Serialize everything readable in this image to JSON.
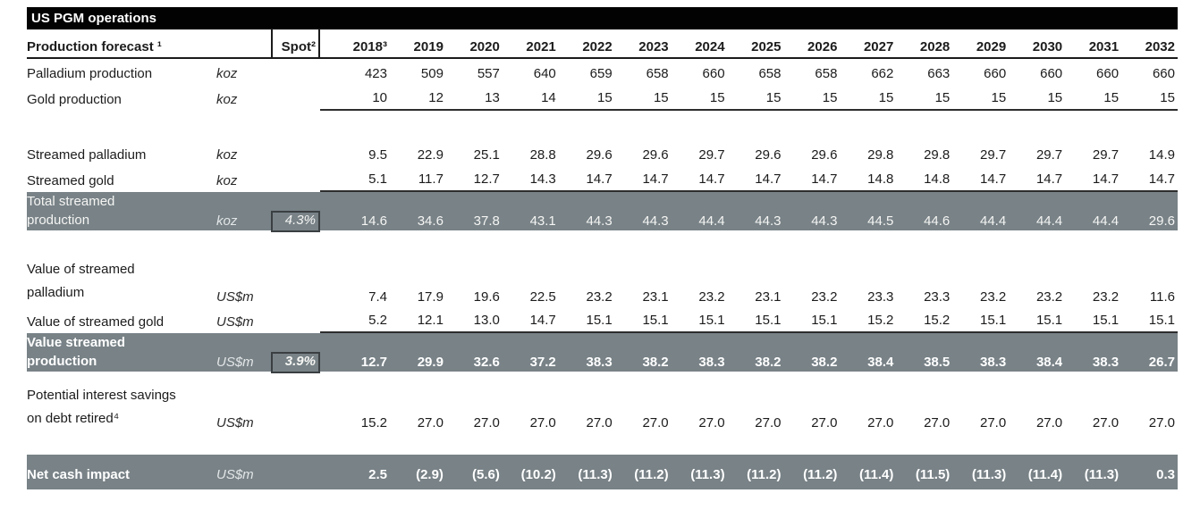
{
  "title": "US PGM operations",
  "colors": {
    "title_bar_bg": "#020202",
    "title_bar_text": "#ffffff",
    "highlight_row_bg": "#788287",
    "highlight_row_text": "#ffffff",
    "body_text": "#1c1c1c",
    "spot_box_border": "#3a3f42"
  },
  "header": {
    "label": "Production forecast ¹",
    "unit": "",
    "spot": "Spot²",
    "years": [
      "2018³",
      "2019",
      "2020",
      "2021",
      "2022",
      "2023",
      "2024",
      "2025",
      "2026",
      "2027",
      "2028",
      "2029",
      "2030",
      "2031",
      "2032"
    ]
  },
  "rows": [
    {
      "id": "palladium-production",
      "label": "Palladium production",
      "unit": "koz",
      "spot": "",
      "values": [
        "423",
        "509",
        "557",
        "640",
        "659",
        "658",
        "660",
        "658",
        "658",
        "662",
        "663",
        "660",
        "660",
        "660",
        "660"
      ]
    },
    {
      "id": "gold-production",
      "label": "Gold production",
      "unit": "koz",
      "spot": "",
      "underline": true,
      "values": [
        "10",
        "12",
        "13",
        "14",
        "15",
        "15",
        "15",
        "15",
        "15",
        "15",
        "15",
        "15",
        "15",
        "15",
        "15"
      ]
    },
    {
      "id": "spacer-1",
      "spacer": 33
    },
    {
      "id": "streamed-palladium",
      "label": "Streamed palladium",
      "unit": "koz",
      "spot": "",
      "values": [
        "9.5",
        "22.9",
        "25.1",
        "28.8",
        "29.6",
        "29.6",
        "29.7",
        "29.6",
        "29.6",
        "29.8",
        "29.8",
        "29.7",
        "29.7",
        "29.7",
        "14.9"
      ]
    },
    {
      "id": "streamed-gold",
      "label": "Streamed gold",
      "unit": "koz",
      "spot": "",
      "underline": true,
      "values": [
        "5.1",
        "11.7",
        "12.7",
        "14.3",
        "14.7",
        "14.7",
        "14.7",
        "14.7",
        "14.7",
        "14.8",
        "14.8",
        "14.7",
        "14.7",
        "14.7",
        "14.7"
      ]
    },
    {
      "id": "total-streamed-production",
      "label_lines": [
        "Total streamed",
        "production"
      ],
      "unit": "koz",
      "spot": "4.3%",
      "gray": true,
      "values": [
        "14.6",
        "34.6",
        "37.8",
        "43.1",
        "44.3",
        "44.3",
        "44.4",
        "44.3",
        "44.3",
        "44.5",
        "44.6",
        "44.4",
        "44.4",
        "44.4",
        "29.6"
      ]
    },
    {
      "id": "spacer-2",
      "spacer": 31
    },
    {
      "id": "value-streamed-palladium",
      "label_lines": [
        "Value of streamed",
        "palladium"
      ],
      "unit": "US$m",
      "spot": "",
      "twoline": true,
      "values": [
        "7.4",
        "17.9",
        "19.6",
        "22.5",
        "23.2",
        "23.1",
        "23.2",
        "23.1",
        "23.2",
        "23.3",
        "23.3",
        "23.2",
        "23.2",
        "23.2",
        "11.6"
      ]
    },
    {
      "id": "value-streamed-gold",
      "label": "Value of streamed gold",
      "unit": "US$m",
      "spot": "",
      "underline": true,
      "values": [
        "5.2",
        "12.1",
        "13.0",
        "14.7",
        "15.1",
        "15.1",
        "15.1",
        "15.1",
        "15.1",
        "15.2",
        "15.2",
        "15.1",
        "15.1",
        "15.1",
        "15.1"
      ]
    },
    {
      "id": "value-streamed-production",
      "label_lines": [
        "Value streamed",
        "production"
      ],
      "unit": "US$m",
      "spot": "3.9%",
      "gray": true,
      "bold": true,
      "values": [
        "12.7",
        "29.9",
        "32.6",
        "37.2",
        "38.3",
        "38.2",
        "38.3",
        "38.2",
        "38.2",
        "38.4",
        "38.5",
        "38.3",
        "38.4",
        "38.3",
        "26.7"
      ]
    },
    {
      "id": "spacer-3",
      "spacer": 14
    },
    {
      "id": "interest-savings",
      "label_lines": [
        "Potential interest savings",
        "on debt retired⁴"
      ],
      "unit": "US$m",
      "spot": "",
      "twoline": true,
      "values": [
        "15.2",
        "27.0",
        "27.0",
        "27.0",
        "27.0",
        "27.0",
        "27.0",
        "27.0",
        "27.0",
        "27.0",
        "27.0",
        "27.0",
        "27.0",
        "27.0",
        "27.0"
      ]
    },
    {
      "id": "spacer-4",
      "spacer": 24
    },
    {
      "id": "net-cash-impact",
      "label": "Net cash impact",
      "unit": "US$m",
      "spot": "",
      "gray": true,
      "bold": true,
      "tall": true,
      "values": [
        "2.5",
        "(2.9)",
        "(5.6)",
        "(10.2)",
        "(11.3)",
        "(11.2)",
        "(11.3)",
        "(11.2)",
        "(11.2)",
        "(11.4)",
        "(11.5)",
        "(11.3)",
        "(11.4)",
        "(11.3)",
        "0.3"
      ]
    }
  ]
}
